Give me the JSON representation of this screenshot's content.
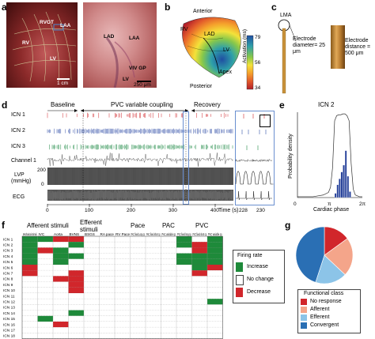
{
  "panel_labels": {
    "a": "a",
    "b": "b",
    "c": "c",
    "d": "d",
    "e": "e",
    "f": "f",
    "g": "g"
  },
  "panel_a": {
    "left_labels": {
      "rvot": "RVOT",
      "laa": "LAA",
      "rv": "RV",
      "lv": "LV"
    },
    "scale_left": "1 cm",
    "right_labels": {
      "lad": "LAD",
      "laa": "LAA",
      "viv_gp": "VIV GP",
      "lv": "LV"
    },
    "scale_right": "250 μm"
  },
  "panel_b": {
    "anterior": "Anterior",
    "posterior": "Posterior",
    "apex": "Apex",
    "rv": "RV",
    "lad": "LAD",
    "lv": "LV",
    "colorbar_ticks": [
      "79",
      "56",
      "34"
    ],
    "colorbar_label": "Activation (ms)",
    "colors": [
      "#b2202a",
      "#e25a2b",
      "#f5a12c",
      "#f3e23a",
      "#88c84a",
      "#2ea0a9",
      "#1f4ea2"
    ]
  },
  "panel_c": {
    "lma": "LMA",
    "electrode_diameter": "Electrode diameter= 25 μm",
    "electrode_distance": "Electrode distance = 500 μm"
  },
  "panel_d": {
    "baseline": "Baseline",
    "pvc": "PVC variable coupling",
    "recovery": "Recovery",
    "rows": [
      "ICN 1",
      "ICN 2",
      "ICN 3",
      "Channel 1",
      "LVP",
      "ECG"
    ],
    "lvp_unit": "(mmHg)",
    "lvp_tick_top": "200",
    "lvp_tick_bottom": "0",
    "x_ticks": [
      "0",
      "100",
      "200",
      "300",
      "400"
    ],
    "x_unit": "Time (s)",
    "inset_ticks": [
      "228",
      "230"
    ],
    "icn1_color": "#d1262b",
    "icn2_color": "#3552a8",
    "icn3_color": "#1f8a45"
  },
  "chart_data": {
    "type": "area",
    "title": "ICN 2",
    "xlabel": "Cardiac phase",
    "ylabel": "Probability density",
    "x_ticks": [
      "0",
      "π",
      "2π"
    ],
    "histogram": {
      "bins": [
        3.6,
        3.8,
        4.0,
        4.2,
        4.4,
        4.6,
        4.8,
        5.0
      ],
      "values": [
        0.05,
        0.15,
        0.22,
        0.3,
        0.38,
        0.55,
        0.25,
        0.07
      ]
    },
    "density_curve": {
      "x": [
        0,
        0.5,
        1.0,
        1.5,
        2.0,
        2.5,
        3.0,
        3.2,
        3.4,
        3.6,
        3.8,
        4.0,
        4.2,
        4.4,
        4.6,
        4.8,
        5.0,
        5.2,
        5.4,
        5.6,
        6.0,
        6.28
      ],
      "y": [
        0.01,
        0.01,
        0.01,
        0.01,
        0.02,
        0.03,
        0.06,
        0.12,
        0.35,
        0.9,
        0.96,
        0.97,
        0.97,
        0.98,
        0.98,
        0.96,
        0.9,
        0.4,
        0.1,
        0.03,
        0.01,
        0.01
      ]
    },
    "bar_color": "#26419a"
  },
  "panel_f": {
    "groups": [
      "Afferent stimuli",
      "Efferent stimuli",
      "Pace",
      "PAC",
      "PVC"
    ],
    "columns": [
      "Mechanical stimuli",
      "IVC",
      "Aorta",
      "BVNS",
      "BSGS",
      "RA pace",
      "RV Pace",
      "PAC fixed Long cp",
      "PAC fixed short cp",
      "PAC variable cp",
      "PVC fixed long cp",
      "PVC fixed short cp",
      "PVC variable cp"
    ],
    "rows": [
      "ICN 1",
      "ICN 2",
      "ICN 3",
      "ICN 4",
      "ICN 5",
      "ICN 6",
      "ICN 7",
      "ICN 8",
      "ICN 9",
      "ICN 10",
      "ICN 11",
      "ICN 12",
      "ICN 13",
      "ICN 14",
      "ICN 15",
      "ICN 16",
      "ICN 17",
      "ICN 18"
    ],
    "legend_title": "Firing rate",
    "legend": [
      "Increase",
      "No change",
      "Decrease"
    ],
    "colors": {
      "increase": "#1e8a3a",
      "decrease": "#d1262b",
      "nochange": "#ffffff"
    },
    "cells": [
      "ggrrNNNNNNgNg",
      "gNNgNNNNNNgrg",
      "grgNNNNNNNNrg",
      "gNggNNNNNNggg",
      "gNgNNNNNNNggg",
      "rNNNNNNNNNNgr",
      "rNNrNNNNNNNrN",
      "NNrrNNNNNNNNN",
      "NNNrNNNNNNNNN",
      "NNNrNNNNNNNNN",
      "NNNNNNNNNNNNN",
      "NNNNNNNNNNNNg",
      "NNNNNNNNNNNNN",
      "NNNgNNNNNNNNN",
      "NgNNNNNNNNNNN",
      "NNrNNNNNNNNNN",
      "NNNNNNNNNNNNN",
      "NNNNNNNNNNNNN"
    ]
  },
  "panel_g": {
    "legend_title": "Functional class",
    "legend": [
      "No response",
      "Afferent",
      "Efferent",
      "Convergent"
    ],
    "values": [
      0.15,
      0.22,
      0.18,
      0.45
    ],
    "colors": [
      "#d1262b",
      "#f4a58a",
      "#8cc4e8",
      "#2a6fb4"
    ]
  }
}
